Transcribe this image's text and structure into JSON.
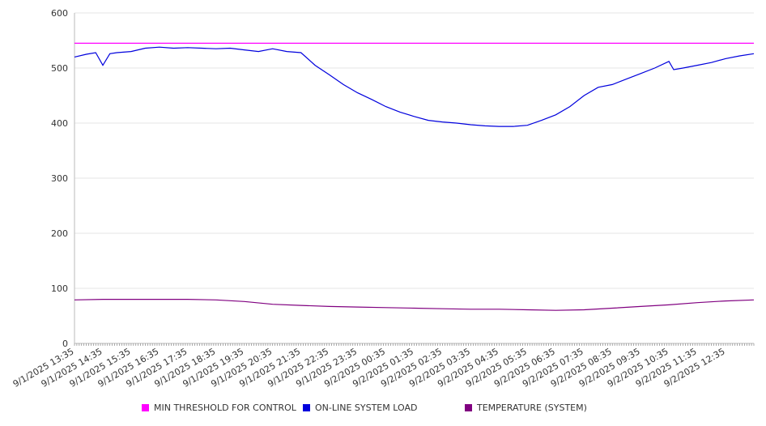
{
  "chart_data": {
    "type": "line",
    "ylim": [
      0,
      600
    ],
    "yticks": [
      0,
      100,
      200,
      300,
      400,
      500,
      600
    ],
    "xticks": [
      "9/1/2025 13:35",
      "9/1/2025 14:35",
      "9/1/2025 15:35",
      "9/1/2025 16:35",
      "9/1/2025 17:35",
      "9/1/2025 18:35",
      "9/1/2025 19:35",
      "9/1/2025 20:35",
      "9/1/2025 21:35",
      "9/1/2025 22:35",
      "9/1/2025 23:35",
      "9/2/2025 00:35",
      "9/2/2025 01:35",
      "9/2/2025 02:35",
      "9/2/2025 03:35",
      "9/2/2025 04:35",
      "9/2/2025 05:35",
      "9/2/2025 06:35",
      "9/2/2025 07:35",
      "9/2/2025 08:35",
      "9/2/2025 09:35",
      "9/2/2025 10:35",
      "9/2/2025 11:35",
      "9/2/2025 12:35"
    ],
    "grid": true,
    "legend_position": "bottom",
    "series": [
      {
        "name": "MIN THRESHOLD FOR CONTROL",
        "color": "#ff00ff",
        "x": [
          "9/1/2025 13:35",
          "9/2/2025 13:35"
        ],
        "values": [
          545,
          545
        ]
      },
      {
        "name": "ON-LINE SYSTEM LOAD",
        "color": "#0000dd",
        "x": [
          "9/1/2025 13:35",
          "9/1/2025 14:00",
          "9/1/2025 14:20",
          "9/1/2025 14:35",
          "9/1/2025 14:50",
          "9/1/2025 15:05",
          "9/1/2025 15:35",
          "9/1/2025 16:05",
          "9/1/2025 16:35",
          "9/1/2025 17:05",
          "9/1/2025 17:35",
          "9/1/2025 18:05",
          "9/1/2025 18:35",
          "9/1/2025 19:05",
          "9/1/2025 19:35",
          "9/1/2025 20:05",
          "9/1/2025 20:35",
          "9/1/2025 21:05",
          "9/1/2025 21:35",
          "9/1/2025 22:05",
          "9/1/2025 22:35",
          "9/1/2025 23:05",
          "9/1/2025 23:35",
          "9/2/2025 00:05",
          "9/2/2025 00:35",
          "9/2/2025 01:05",
          "9/2/2025 01:35",
          "9/2/2025 02:05",
          "9/2/2025 02:35",
          "9/2/2025 03:05",
          "9/2/2025 03:35",
          "9/2/2025 04:05",
          "9/2/2025 04:35",
          "9/2/2025 05:05",
          "9/2/2025 05:35",
          "9/2/2025 06:05",
          "9/2/2025 06:35",
          "9/2/2025 07:05",
          "9/2/2025 07:35",
          "9/2/2025 08:05",
          "9/2/2025 08:35",
          "9/2/2025 09:05",
          "9/2/2025 09:35",
          "9/2/2025 10:05",
          "9/2/2025 10:35",
          "9/2/2025 10:45",
          "9/2/2025 11:05",
          "9/2/2025 11:35",
          "9/2/2025 12:05",
          "9/2/2025 12:35",
          "9/2/2025 13:05",
          "9/2/2025 13:35"
        ],
        "values": [
          520,
          525,
          528,
          505,
          526,
          528,
          530,
          536,
          538,
          536,
          537,
          536,
          535,
          536,
          533,
          530,
          535,
          530,
          528,
          505,
          488,
          470,
          455,
          443,
          430,
          420,
          412,
          405,
          402,
          400,
          397,
          395,
          394,
          394,
          396,
          405,
          415,
          430,
          450,
          465,
          470,
          480,
          490,
          500,
          512,
          497,
          500,
          505,
          510,
          517,
          522,
          526
        ]
      },
      {
        "name": "TEMPERATURE (SYSTEM)",
        "color": "#800080",
        "x": [
          "9/1/2025 13:35",
          "9/1/2025 14:35",
          "9/1/2025 15:35",
          "9/1/2025 16:35",
          "9/1/2025 17:35",
          "9/1/2025 18:35",
          "9/1/2025 19:35",
          "9/1/2025 20:35",
          "9/1/2025 21:35",
          "9/1/2025 22:35",
          "9/1/2025 23:35",
          "9/2/2025 00:35",
          "9/2/2025 01:35",
          "9/2/2025 02:35",
          "9/2/2025 03:35",
          "9/2/2025 04:35",
          "9/2/2025 05:35",
          "9/2/2025 06:35",
          "9/2/2025 07:35",
          "9/2/2025 08:35",
          "9/2/2025 09:35",
          "9/2/2025 10:35",
          "9/2/2025 11:35",
          "9/2/2025 12:35",
          "9/2/2025 13:35"
        ],
        "values": [
          79,
          80,
          80,
          80,
          80,
          79,
          76,
          71,
          69,
          67,
          66,
          65,
          64,
          63,
          62,
          62,
          61,
          60,
          61,
          64,
          67,
          70,
          74,
          77,
          79
        ]
      }
    ]
  }
}
